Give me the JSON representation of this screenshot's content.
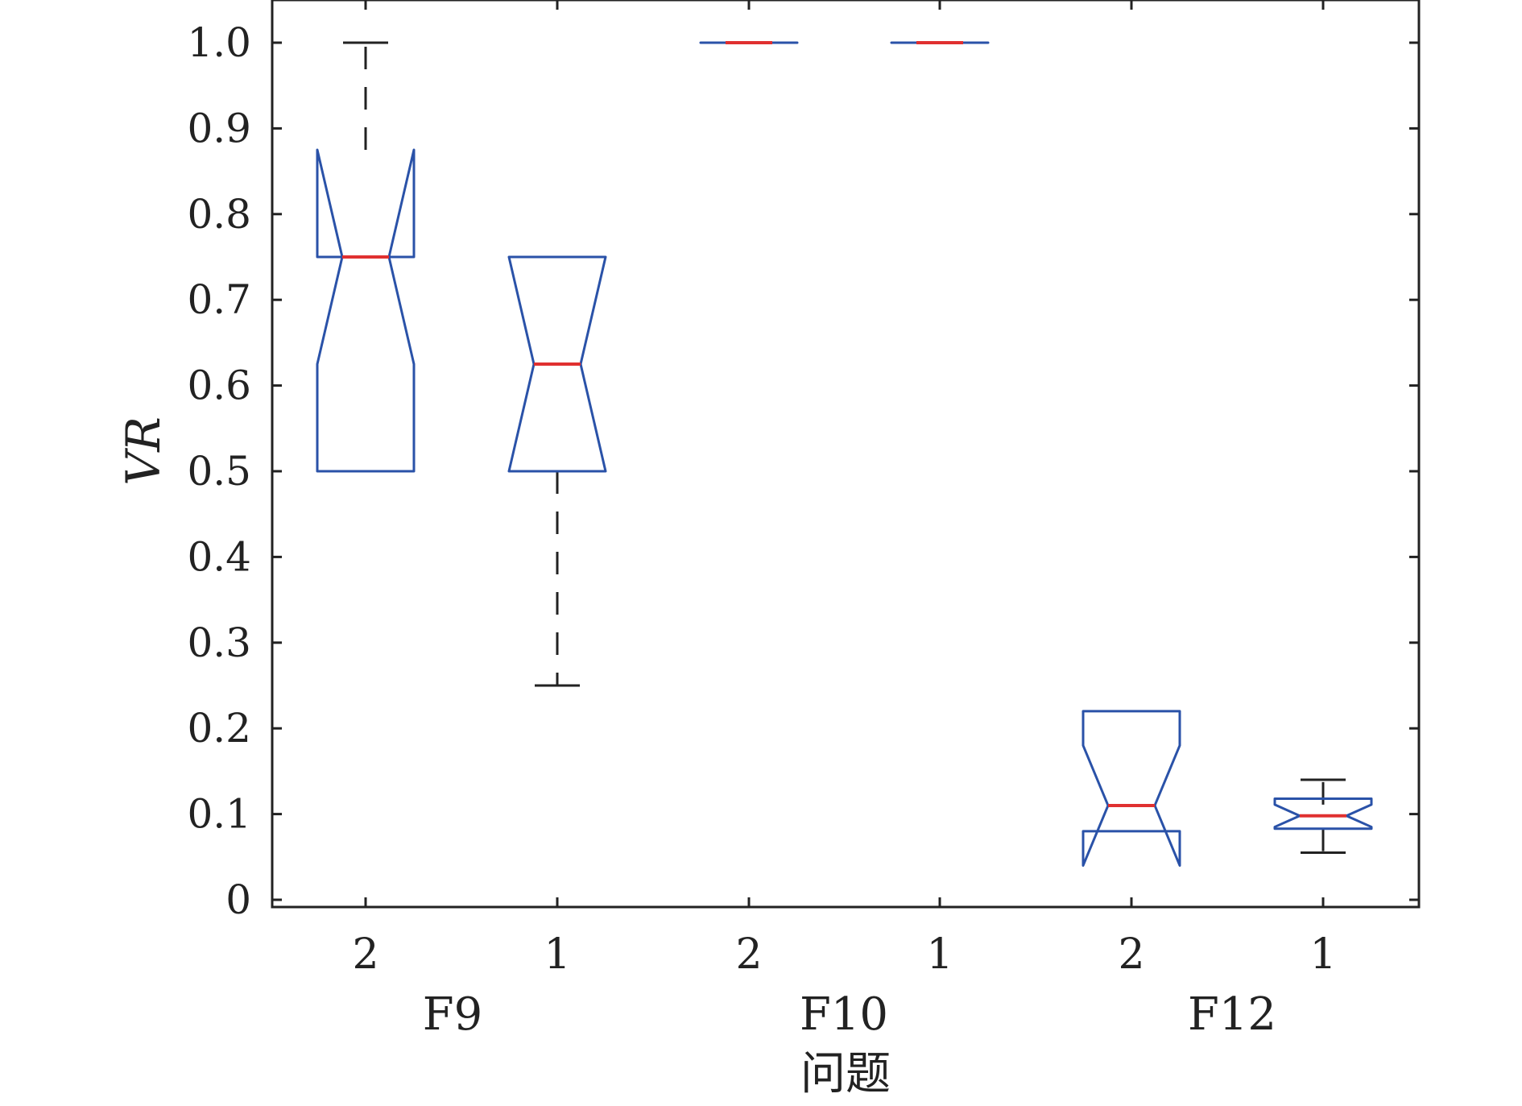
{
  "chart_data": {
    "type": "boxplot",
    "ylabel": "VR",
    "xlabel": "问题",
    "ylim": [
      0,
      1.0
    ],
    "yticks": [
      0,
      0.1,
      0.2,
      0.3,
      0.4,
      0.5,
      0.6,
      0.7,
      0.8,
      0.9,
      1.0
    ],
    "ytick_labels": [
      "0",
      "0.1",
      "0.2",
      "0.3",
      "0.4",
      "0.5",
      "0.6",
      "0.7",
      "0.8",
      "0.9",
      "1.0"
    ],
    "groups": [
      "F9",
      "F10",
      "F12"
    ],
    "categories": [
      "2",
      "1",
      "2",
      "1",
      "2",
      "1"
    ],
    "notched": true,
    "boxes": [
      {
        "group": "F9",
        "label": "2",
        "whisker_low": 0.5,
        "q1": 0.5,
        "median": 0.75,
        "q3": 0.75,
        "whisker_high": 1.0,
        "notch_low": 0.625,
        "notch_high": 0.875
      },
      {
        "group": "F9",
        "label": "1",
        "whisker_low": 0.25,
        "q1": 0.5,
        "median": 0.625,
        "q3": 0.75,
        "whisker_high": 0.75,
        "notch_low": 0.5,
        "notch_high": 0.75
      },
      {
        "group": "F10",
        "label": "2",
        "whisker_low": 1.0,
        "q1": 1.0,
        "median": 1.0,
        "q3": 1.0,
        "whisker_high": 1.0,
        "notch_low": 1.0,
        "notch_high": 1.0
      },
      {
        "group": "F10",
        "label": "1",
        "whisker_low": 1.0,
        "q1": 1.0,
        "median": 1.0,
        "q3": 1.0,
        "whisker_high": 1.0,
        "notch_low": 1.0,
        "notch_high": 1.0
      },
      {
        "group": "F12",
        "label": "2",
        "whisker_low": 0.08,
        "q1": 0.08,
        "median": 0.11,
        "q3": 0.22,
        "whisker_high": 0.22,
        "notch_low": 0.04,
        "notch_high": 0.18
      },
      {
        "group": "F12",
        "label": "1",
        "whisker_low": 0.055,
        "q1": 0.083,
        "median": 0.098,
        "q3": 0.118,
        "whisker_high": 0.14,
        "notch_low": 0.085,
        "notch_high": 0.111
      }
    ],
    "colors": {
      "box": "#2a52a8",
      "median": "#e03030",
      "whisker": "#222222",
      "axis": "#222222"
    },
    "grid": false
  }
}
